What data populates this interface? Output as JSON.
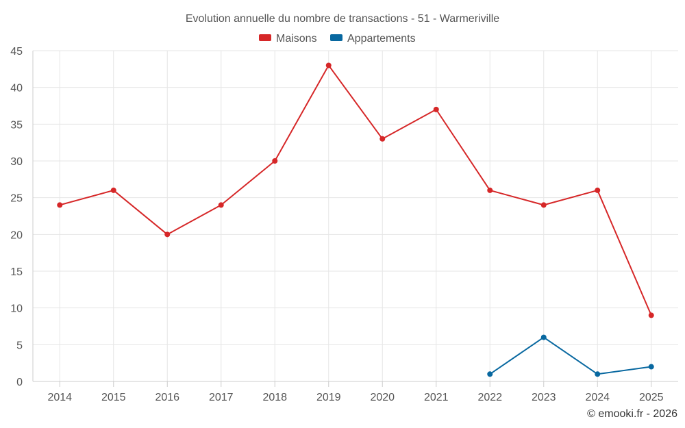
{
  "chart_data": {
    "type": "line",
    "title": "Evolution annuelle du nombre de transactions - 51 - Warmeriville",
    "xlabel": "",
    "ylabel": "",
    "categories": [
      "2014",
      "2015",
      "2016",
      "2017",
      "2018",
      "2019",
      "2020",
      "2021",
      "2022",
      "2023",
      "2024",
      "2025"
    ],
    "ylim": [
      0,
      45
    ],
    "yticks": [
      0,
      5,
      10,
      15,
      20,
      25,
      30,
      35,
      40,
      45
    ],
    "grid": true,
    "legend_position": "top-center",
    "series": [
      {
        "name": "Maisons",
        "color": "#d62728",
        "values": [
          24,
          26,
          20,
          24,
          30,
          43,
          33,
          37,
          26,
          24,
          26,
          9
        ]
      },
      {
        "name": "Appartements",
        "color": "#0868a0",
        "values": [
          null,
          null,
          null,
          null,
          null,
          null,
          null,
          null,
          1,
          6,
          1,
          2
        ]
      }
    ],
    "credit": "© emooki.fr - 2026"
  }
}
